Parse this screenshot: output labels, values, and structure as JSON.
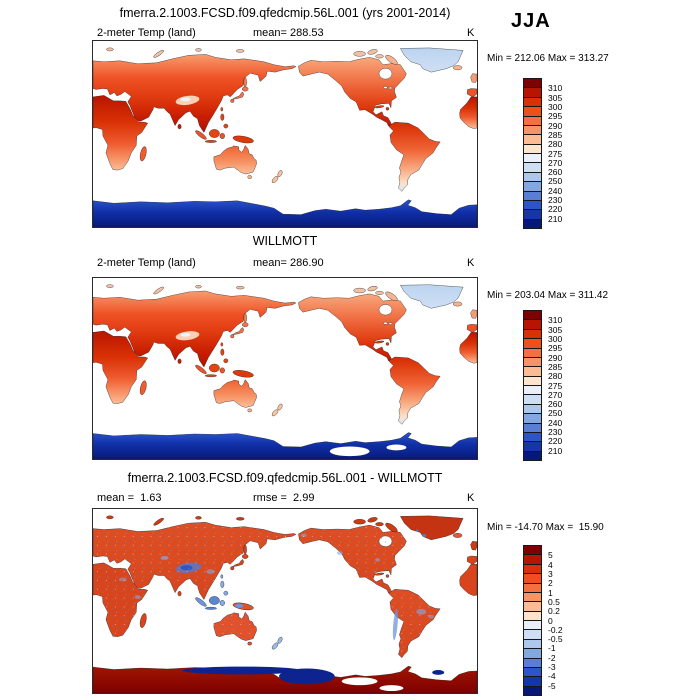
{
  "header": {
    "title": "fmerra.2.1003.FCSD.f09.qfedcmip.56L.001 (yrs 2001-2014)",
    "season": "JJA"
  },
  "panels": [
    {
      "title": "",
      "var_label": "2-meter Temp (land)",
      "stat_label": "mean= 288.53",
      "unit": "K",
      "minmax": "Min = 212.06 Max = 313.27"
    },
    {
      "title": "WILLMOTT",
      "var_label": "2-meter Temp (land)",
      "stat_label": "mean= 286.90",
      "unit": "K",
      "minmax": "Min = 203.04 Max = 311.42"
    },
    {
      "title": "fmerra.2.1003.FCSD.f09.qfedcmip.56L.001 - WILLMOTT",
      "var_label": "mean =  1.63",
      "stat_label": "rmse =  2.99",
      "unit": "K",
      "minmax": "Min = -14.70 Max =  15.90"
    }
  ],
  "colorbars": [
    {
      "ticks": [
        "310",
        "305",
        "300",
        "295",
        "290",
        "285",
        "280",
        "275",
        "270",
        "260",
        "250",
        "240",
        "230",
        "220",
        "210"
      ],
      "colors": [
        "#7f0000",
        "#b81500",
        "#d93005",
        "#ef4f1f",
        "#f4713f",
        "#f79465",
        "#fbbc95",
        "#fde5cd",
        "#e9f0fa",
        "#cfdff3",
        "#adc8ec",
        "#83a8e0",
        "#587fd4",
        "#2c55c5",
        "#1635a6",
        "#081878"
      ]
    },
    {
      "ticks": [
        "310",
        "305",
        "300",
        "295",
        "290",
        "285",
        "280",
        "275",
        "270",
        "260",
        "250",
        "240",
        "230",
        "220",
        "210"
      ],
      "colors": [
        "#7f0000",
        "#b81500",
        "#d93005",
        "#ef4f1f",
        "#f4713f",
        "#f79465",
        "#fbbc95",
        "#fde5cd",
        "#e9f0fa",
        "#cfdff3",
        "#adc8ec",
        "#83a8e0",
        "#587fd4",
        "#2c55c5",
        "#1635a6",
        "#081878"
      ]
    },
    {
      "ticks": [
        "5",
        "4",
        "3",
        "2",
        "1",
        "0.5",
        "0.2",
        "0",
        "-0.2",
        "-0.5",
        "-1",
        "-2",
        "-3",
        "-4",
        "-5"
      ],
      "colors": [
        "#7f0000",
        "#b81500",
        "#d93005",
        "#ef4f1f",
        "#f4713f",
        "#f79465",
        "#fbbc95",
        "#fde5cd",
        "#e9f0fa",
        "#cfdff3",
        "#adc8ec",
        "#83a8e0",
        "#587fd4",
        "#2c55c5",
        "#1635a6",
        "#081878"
      ]
    }
  ],
  "chart_data": [
    {
      "type": "heatmap",
      "subtype": "global-land-temperature-map",
      "title": "fmerra.2.1003.FCSD.f09.qfedcmip.56L.001 (yrs 2001-2014)",
      "variable": "2-meter Temp (land)",
      "season": "JJA",
      "units": "K",
      "mean": 288.53,
      "min": 212.06,
      "max": 313.27,
      "levels": [
        210,
        220,
        230,
        240,
        250,
        260,
        270,
        275,
        280,
        285,
        290,
        295,
        300,
        305,
        310
      ],
      "legend_position": "right",
      "projection": "global lat-lon, Pacific-centered, ocean masked white"
    },
    {
      "type": "heatmap",
      "subtype": "global-land-temperature-map",
      "title": "WILLMOTT",
      "variable": "2-meter Temp (land)",
      "season": "JJA",
      "units": "K",
      "mean": 286.9,
      "min": 203.04,
      "max": 311.42,
      "levels": [
        210,
        220,
        230,
        240,
        250,
        260,
        270,
        275,
        280,
        285,
        290,
        295,
        300,
        305,
        310
      ],
      "legend_position": "right",
      "projection": "global lat-lon, Pacific-centered, ocean masked white"
    },
    {
      "type": "heatmap",
      "subtype": "difference-map",
      "title": "fmerra.2.1003.FCSD.f09.qfedcmip.56L.001 - WILLMOTT",
      "season": "JJA",
      "units": "K",
      "mean": 1.63,
      "rmse": 2.99,
      "min": -14.7,
      "max": 15.9,
      "levels": [
        -5,
        -4,
        -3,
        -2,
        -1,
        -0.5,
        -0.2,
        0,
        0.2,
        0.5,
        1,
        2,
        3,
        4,
        5
      ],
      "legend_position": "right",
      "projection": "global lat-lon, Pacific-centered, ocean masked white"
    }
  ]
}
